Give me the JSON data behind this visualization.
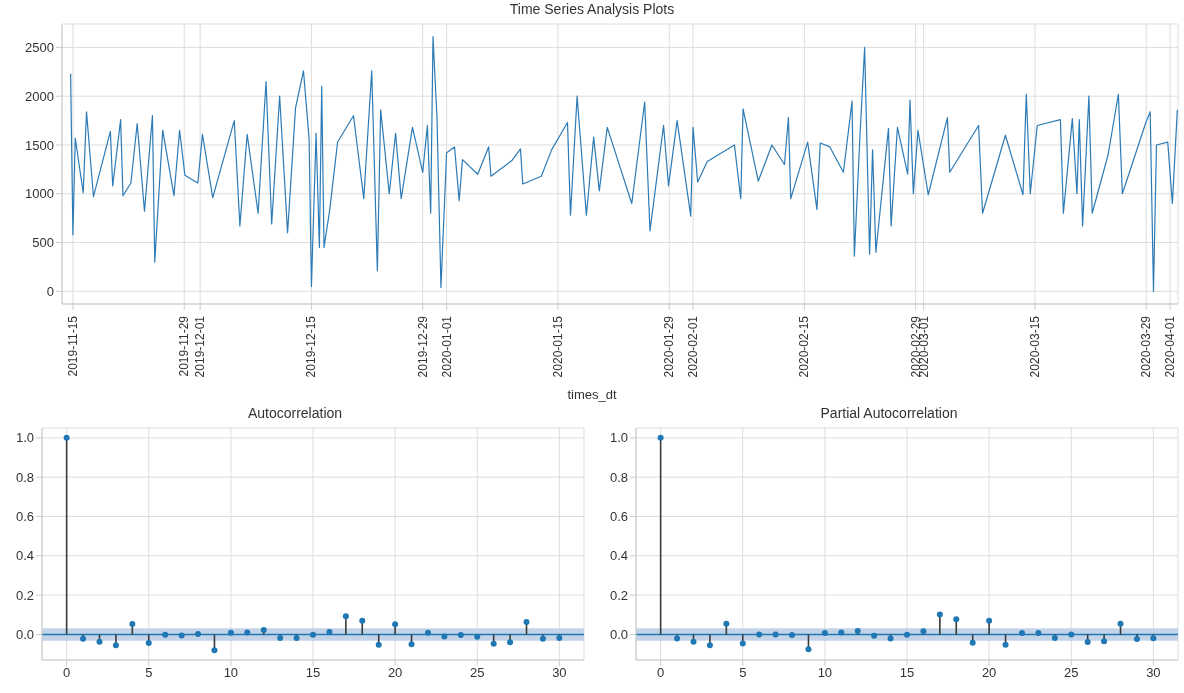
{
  "chart_data": [
    {
      "type": "line",
      "title": "Time Series Analysis Plots",
      "xlabel": "times_dt",
      "grid": true,
      "x": [
        "2019-11-14T17:00",
        "2019-11-15T00:00",
        "2019-11-15T07:00",
        "2019-11-16T07:00",
        "2019-11-16T17:00",
        "2019-11-17T14:00",
        "2019-11-19T17:00",
        "2019-11-20T00:00",
        "2019-11-21T00:00",
        "2019-11-21T07:00",
        "2019-11-22T07:00",
        "2019-11-23T02:00",
        "2019-11-24T00:00",
        "2019-11-25T00:00",
        "2019-11-25T07:00",
        "2019-11-26T07:00",
        "2019-11-27T17:00",
        "2019-11-28T10:00",
        "2019-11-29T02:00",
        "2019-11-30T17:00",
        "2019-12-01T07:00",
        "2019-12-02T14:00",
        "2019-12-05T07:00",
        "2019-12-06T00:00",
        "2019-12-06T22:00",
        "2019-12-08T07:00",
        "2019-12-09T07:00",
        "2019-12-10T00:00",
        "2019-12-11T00:00",
        "2019-12-12T00:00",
        "2019-12-13T00:00",
        "2019-12-14T00:00",
        "2019-12-14T17:00",
        "2019-12-15T00:00",
        "2019-12-15T14:00",
        "2019-12-16T00:00",
        "2019-12-16T07:00",
        "2019-12-16T14:00",
        "2019-12-17T07:00",
        "2019-12-18T07:00",
        "2019-12-20T07:00",
        "2019-12-21T14:00",
        "2019-12-22T14:00",
        "2019-12-23T07:00",
        "2019-12-23T17:00",
        "2019-12-24T19:00",
        "2019-12-25T14:00",
        "2019-12-26T07:00",
        "2019-12-27T17:00",
        "2019-12-29T00:00",
        "2019-12-29T14:00",
        "2019-12-30T00:00",
        "2019-12-30T07:00",
        "2019-12-30T19:00",
        "2019-12-31T07:00",
        "2020-01-01T00:00",
        "2020-01-02T00:00",
        "2020-01-02T14:00",
        "2020-01-03T00:00",
        "2020-01-04T22:00",
        "2020-01-06T07:00",
        "2020-01-06T14:00",
        "2020-01-09T05:00",
        "2020-01-10T07:00",
        "2020-01-10T14:00",
        "2020-01-12T22:00",
        "2020-01-14T05:00",
        "2020-01-16T05:00",
        "2020-01-16T14:00",
        "2020-01-17T10:00",
        "2020-01-18T14:00",
        "2020-01-19T12:00",
        "2020-01-20T05:00",
        "2020-01-21T05:00",
        "2020-01-24T07:00",
        "2020-01-25T22:00",
        "2020-01-26T14:00",
        "2020-01-28T07:00",
        "2020-01-28T22:00",
        "2020-01-30T00:00",
        "2020-01-31T17:00",
        "2020-02-01T00:00",
        "2020-02-01T14:00",
        "2020-02-02T19:00",
        "2020-02-06T05:00",
        "2020-02-07T00:00",
        "2020-02-07T07:00",
        "2020-02-09T05:00",
        "2020-02-10T22:00",
        "2020-02-12T12:00",
        "2020-02-13T00:00",
        "2020-02-13T07:00",
        "2020-02-15T10:00",
        "2020-02-16T14:00",
        "2020-02-17T00:00",
        "2020-02-18T05:00",
        "2020-02-19T22:00",
        "2020-02-21T00:00",
        "2020-02-21T07:00",
        "2020-02-22T00:00",
        "2020-02-22T14:00",
        "2020-02-23T05:00",
        "2020-02-23T14:00",
        "2020-02-24T00:00",
        "2020-02-25T14:00",
        "2020-02-25T22:00",
        "2020-02-26T17:00",
        "2020-02-28T00:00",
        "2020-02-28T07:00",
        "2020-02-28T17:00",
        "2020-02-29T07:00",
        "2020-03-01T14:00",
        "2020-03-04T00:00",
        "2020-03-04T07:00",
        "2020-03-07T22:00",
        "2020-03-08T10:00",
        "2020-03-11T07:00",
        "2020-03-13T12:00",
        "2020-03-13T22:00",
        "2020-03-14T10:00",
        "2020-03-15T07:00",
        "2020-03-18T05:00",
        "2020-03-18T14:00",
        "2020-03-19T17:00",
        "2020-03-20T07:00",
        "2020-03-20T14:00",
        "2020-03-21T00:00",
        "2020-03-21T19:00",
        "2020-03-22T05:00",
        "2020-03-24T05:00",
        "2020-03-25T12:00",
        "2020-03-26T00:00",
        "2020-03-28T22:00",
        "2020-03-29T12:00",
        "2020-03-29T22:00",
        "2020-03-30T07:00",
        "2020-03-31T17:00",
        "2020-04-01T07:00",
        "2020-04-01T22:00"
      ],
      "series": [
        {
          "color": "#2d7bb6",
          "values": [
            2230,
            580,
            1570,
            1010,
            1840,
            970,
            1640,
            1080,
            1760,
            980,
            1110,
            1720,
            820,
            1800,
            300,
            1650,
            980,
            1650,
            1190,
            1110,
            1610,
            960,
            1750,
            670,
            1610,
            800,
            2150,
            690,
            2000,
            600,
            1880,
            2260,
            1560,
            50,
            1620,
            450,
            2100,
            450,
            830,
            1530,
            1800,
            950,
            2260,
            210,
            1860,
            1000,
            1620,
            950,
            1680,
            1220,
            1700,
            800,
            2610,
            1780,
            40,
            1420,
            1480,
            930,
            1350,
            1200,
            1480,
            1180,
            1340,
            1460,
            1100,
            1180,
            1450,
            1730,
            780,
            2000,
            780,
            1580,
            1030,
            1680,
            900,
            1940,
            620,
            1700,
            1080,
            1750,
            770,
            1680,
            1120,
            1330,
            1500,
            950,
            1870,
            1130,
            1500,
            1300,
            1780,
            950,
            1530,
            840,
            1520,
            1480,
            1220,
            1950,
            360,
            1600,
            2500,
            380,
            1450,
            400,
            1670,
            670,
            1680,
            1200,
            1960,
            1000,
            1650,
            990,
            1780,
            1220,
            1700,
            800,
            1600,
            990,
            2020,
            1000,
            1700,
            1760,
            800,
            1770,
            1000,
            1760,
            670,
            2000,
            800,
            1400,
            2020,
            1000,
            1720,
            1840,
            0,
            1500,
            1530,
            900,
            1860
          ]
        }
      ],
      "xlim": [
        "2019-11-13T15:00",
        "2020-04-02T00:00"
      ],
      "xticks": [
        "2019-11-15",
        "2019-11-29",
        "2019-12-01",
        "2019-12-15",
        "2019-12-29",
        "2020-01-01",
        "2020-01-15",
        "2020-01-29",
        "2020-02-01",
        "2020-02-15",
        "2020-02-29",
        "2020-03-01",
        "2020-03-15",
        "2020-03-29",
        "2020-04-01"
      ],
      "ylim": [
        -130,
        2740
      ],
      "yticks": [
        0,
        500,
        1000,
        1500,
        2000,
        2500
      ]
    },
    {
      "type": "lollipop",
      "title": "Autocorrelation",
      "grid": true,
      "marker": "circle",
      "color": "#1f77b4",
      "x": [
        0,
        1,
        2,
        3,
        4,
        5,
        6,
        7,
        8,
        9,
        10,
        11,
        12,
        13,
        14,
        15,
        16,
        17,
        18,
        19,
        20,
        21,
        22,
        23,
        24,
        25,
        26,
        27,
        28,
        29,
        30
      ],
      "values": [
        1.0,
        -0.022,
        -0.037,
        -0.055,
        0.053,
        -0.043,
        -0.002,
        -0.005,
        0.002,
        -0.08,
        0.008,
        0.01,
        0.023,
        -0.018,
        -0.018,
        -0.002,
        0.013,
        0.093,
        0.07,
        -0.053,
        0.052,
        -0.05,
        0.008,
        -0.01,
        -0.003,
        -0.012,
        -0.047,
        -0.04,
        0.063,
        -0.022,
        -0.018
      ],
      "bands": [
        {
          "axis": "y",
          "from": -0.032,
          "to": 0.032,
          "color": "#bccfe6"
        }
      ],
      "ref_lines": [
        {
          "axis": "y",
          "value": 0,
          "color": "#1f77b4"
        }
      ],
      "xlim": [
        -1.5,
        31.5
      ],
      "xticks": [
        0,
        5,
        10,
        15,
        20,
        25,
        30
      ],
      "ylim": [
        -0.13,
        1.05
      ],
      "yticks": [
        {
          "value": 0,
          "label": "0.0"
        },
        {
          "value": 0.2,
          "label": "0.2"
        },
        {
          "value": 0.4,
          "label": "0.4"
        },
        {
          "value": 0.6,
          "label": "0.6"
        },
        {
          "value": 0.8,
          "label": "0.8"
        },
        {
          "value": 1,
          "label": "1.0"
        }
      ]
    },
    {
      "type": "lollipop",
      "title": "Partial Autocorrelation",
      "grid": true,
      "marker": "circle",
      "color": "#1f77b4",
      "x": [
        0,
        1,
        2,
        3,
        4,
        5,
        6,
        7,
        8,
        9,
        10,
        11,
        12,
        13,
        14,
        15,
        16,
        17,
        18,
        19,
        20,
        21,
        22,
        23,
        24,
        25,
        26,
        27,
        28,
        29,
        30
      ],
      "values": [
        1.0,
        -0.021,
        -0.037,
        -0.055,
        0.055,
        -0.046,
        0,
        0,
        -0.003,
        -0.075,
        0.007,
        0.01,
        0.018,
        -0.007,
        -0.021,
        -0.002,
        0.016,
        0.101,
        0.077,
        -0.042,
        0.07,
        -0.052,
        0.007,
        0.007,
        -0.018,
        0,
        -0.039,
        -0.034,
        0.055,
        -0.023,
        -0.02
      ],
      "bands": [
        {
          "axis": "y",
          "from": -0.032,
          "to": 0.032,
          "color": "#bccfe6"
        }
      ],
      "ref_lines": [
        {
          "axis": "y",
          "value": 0,
          "color": "#1f77b4"
        }
      ],
      "xlim": [
        -1.5,
        31.5
      ],
      "xticks": [
        0,
        5,
        10,
        15,
        20,
        25,
        30
      ],
      "ylim": [
        -0.13,
        1.05
      ],
      "yticks": [
        {
          "value": 0,
          "label": "0.0"
        },
        {
          "value": 0.2,
          "label": "0.2"
        },
        {
          "value": 0.4,
          "label": "0.4"
        },
        {
          "value": 0.6,
          "label": "0.6"
        },
        {
          "value": 0.8,
          "label": "0.8"
        },
        {
          "value": 1,
          "label": "1.0"
        }
      ]
    }
  ]
}
